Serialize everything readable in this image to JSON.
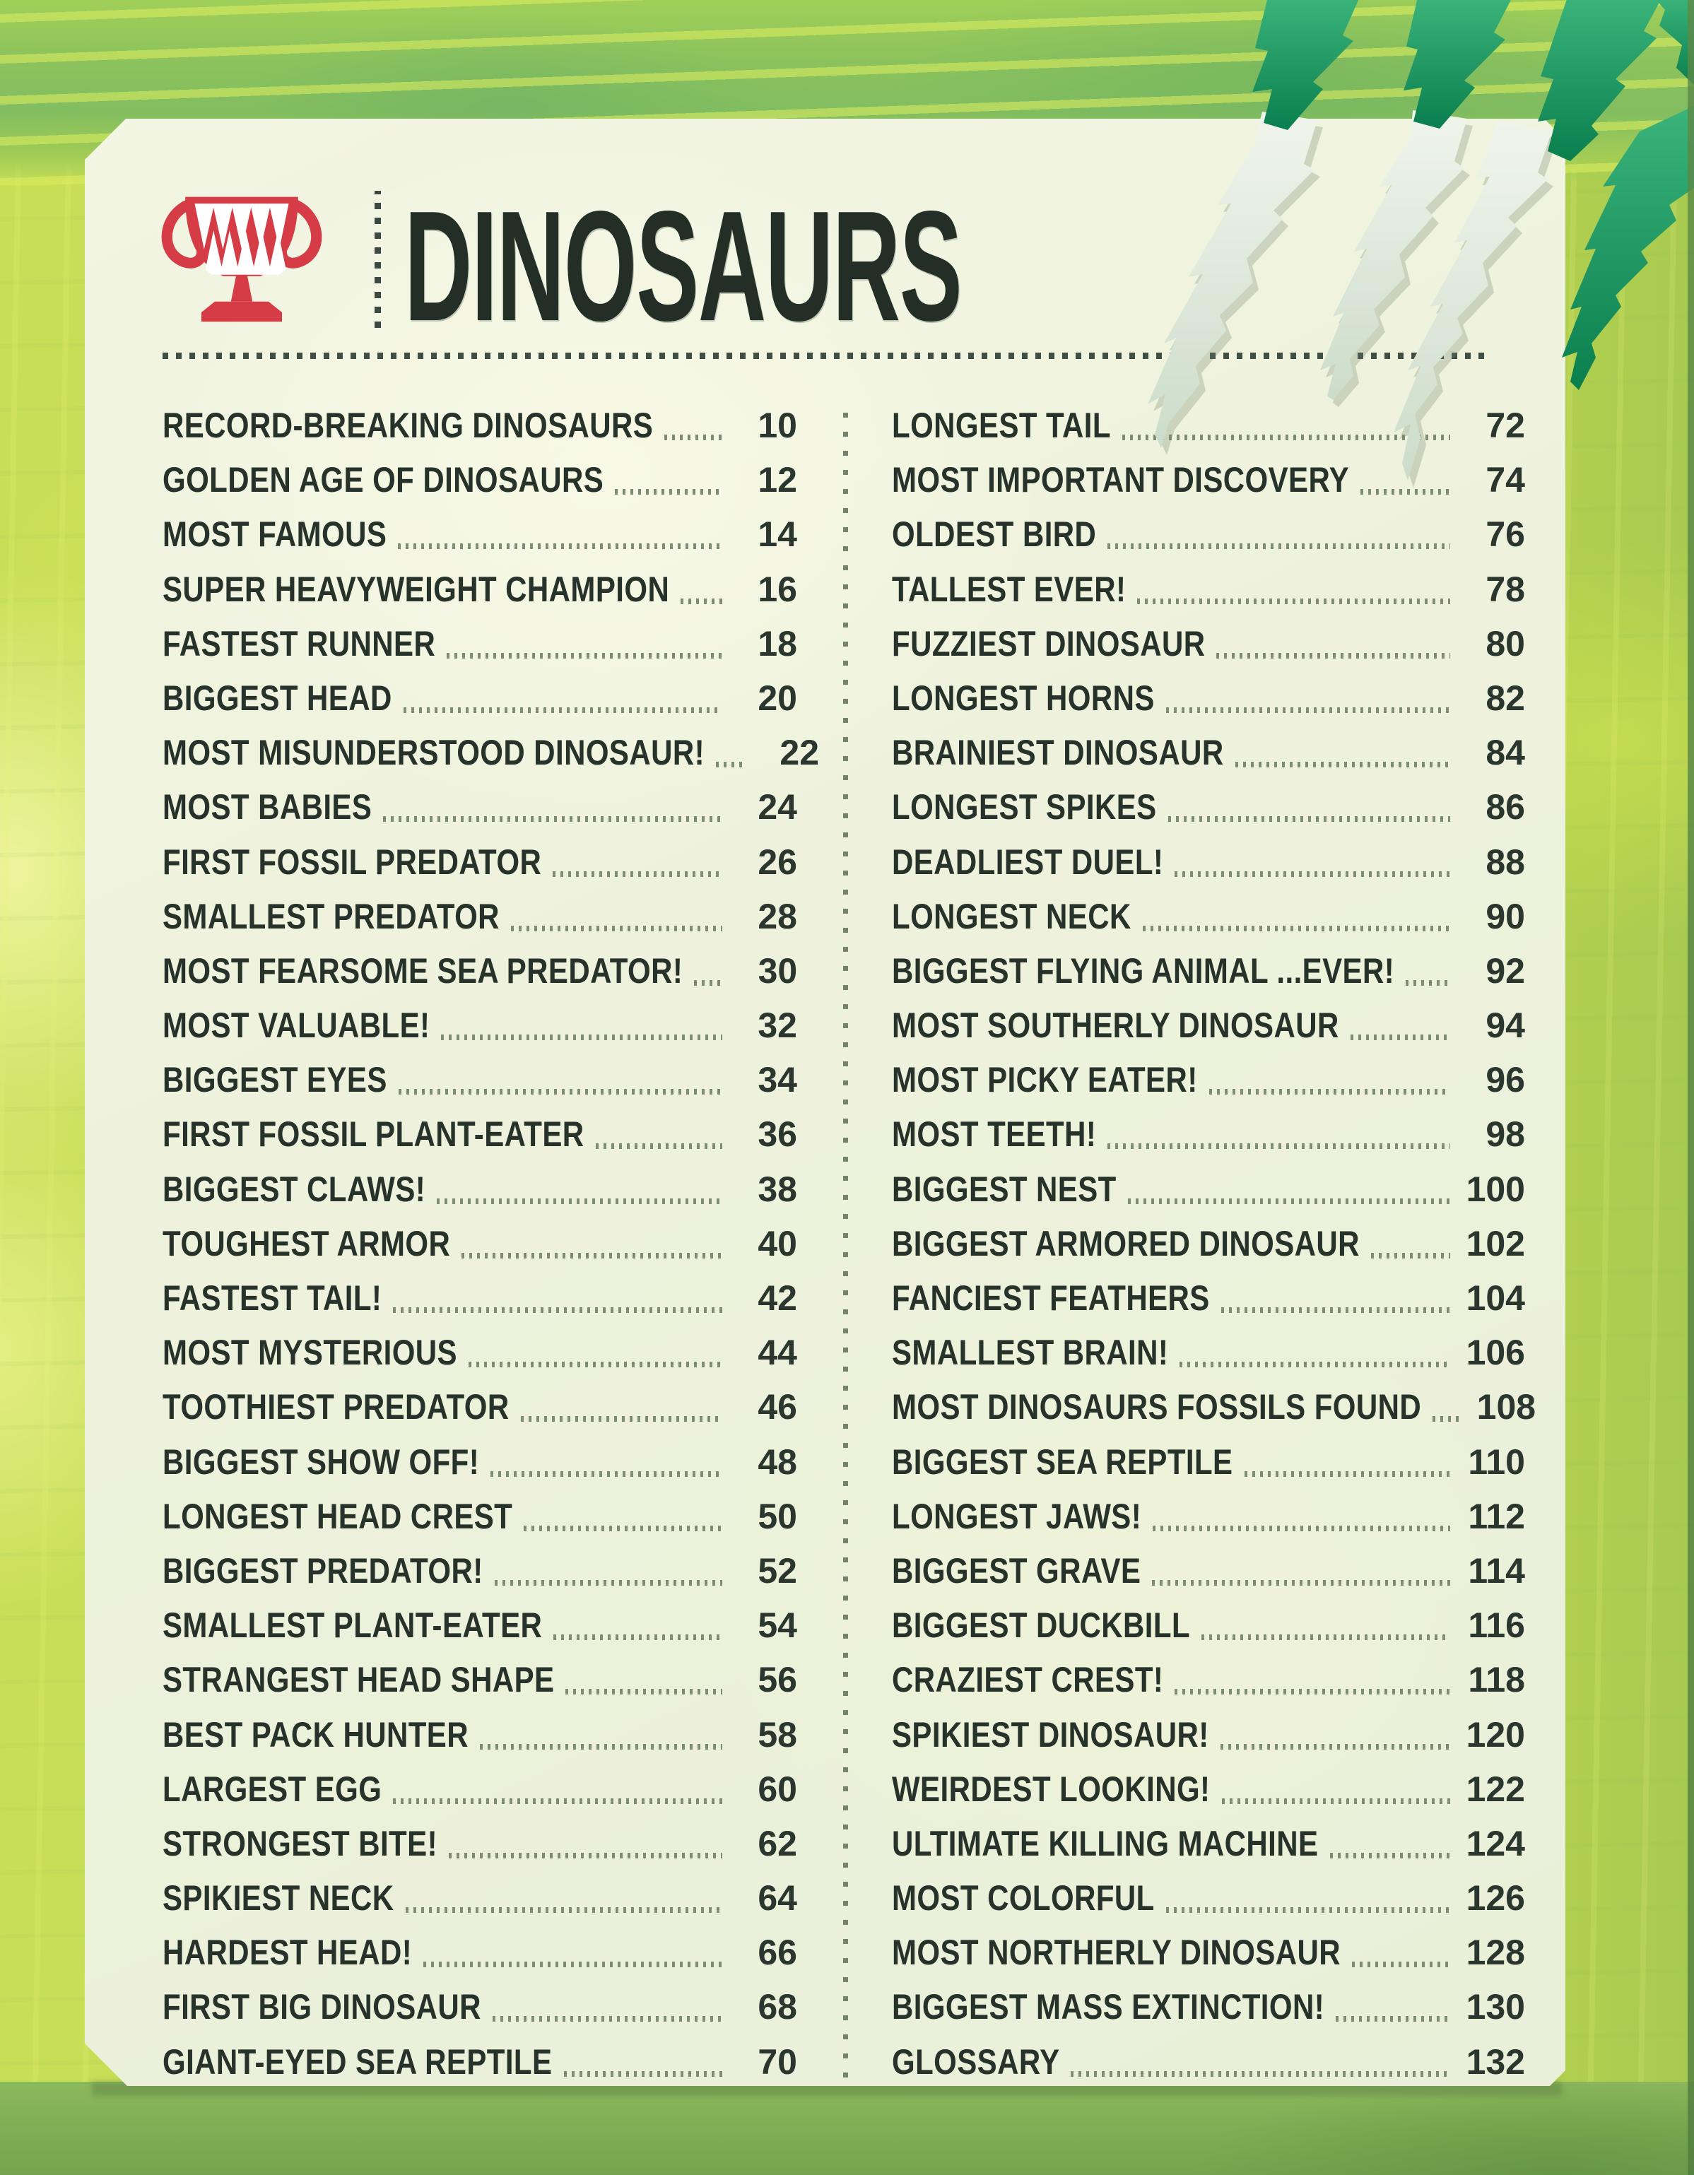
{
  "page": {
    "title": "DINOSAURS",
    "icons": {
      "header_icon": "trophy-with-teeth-icon"
    },
    "colors": {
      "paper": "#eef2dc",
      "ink": "#26322a",
      "leader_dots": "#7e8c72",
      "trophy_red": "#d53c45",
      "claw_green": "#0f8f56",
      "background_green": "#c3dc52"
    }
  },
  "toc": {
    "left_column": [
      {
        "label": "RECORD-BREAKING DINOSAURS",
        "page": "10"
      },
      {
        "label": "GOLDEN AGE OF DINOSAURS",
        "page": "12"
      },
      {
        "label": "MOST FAMOUS",
        "page": "14"
      },
      {
        "label": "SUPER HEAVYWEIGHT CHAMPION",
        "page": "16"
      },
      {
        "label": "FASTEST RUNNER",
        "page": "18"
      },
      {
        "label": "BIGGEST HEAD",
        "page": "20"
      },
      {
        "label": "MOST MISUNDERSTOOD DINOSAUR!",
        "page": "22"
      },
      {
        "label": "MOST BABIES",
        "page": "24"
      },
      {
        "label": "FIRST FOSSIL PREDATOR",
        "page": "26"
      },
      {
        "label": "SMALLEST PREDATOR",
        "page": "28"
      },
      {
        "label": "MOST FEARSOME SEA PREDATOR!",
        "page": "30"
      },
      {
        "label": "MOST VALUABLE!",
        "page": "32"
      },
      {
        "label": "BIGGEST EYES",
        "page": "34"
      },
      {
        "label": "FIRST FOSSIL PLANT-EATER",
        "page": "36"
      },
      {
        "label": "BIGGEST CLAWS!",
        "page": "38"
      },
      {
        "label": "TOUGHEST ARMOR",
        "page": "40"
      },
      {
        "label": "FASTEST TAIL!",
        "page": "42"
      },
      {
        "label": "MOST MYSTERIOUS",
        "page": "44"
      },
      {
        "label": "TOOTHIEST PREDATOR",
        "page": "46"
      },
      {
        "label": "BIGGEST SHOW OFF!",
        "page": "48"
      },
      {
        "label": "LONGEST HEAD CREST",
        "page": "50"
      },
      {
        "label": "BIGGEST PREDATOR!",
        "page": "52"
      },
      {
        "label": "SMALLEST PLANT-EATER",
        "page": "54"
      },
      {
        "label": "STRANGEST HEAD SHAPE",
        "page": "56"
      },
      {
        "label": "BEST PACK HUNTER",
        "page": "58"
      },
      {
        "label": "LARGEST EGG",
        "page": "60"
      },
      {
        "label": "STRONGEST BITE!",
        "page": "62"
      },
      {
        "label": "SPIKIEST NECK",
        "page": "64"
      },
      {
        "label": "HARDEST HEAD!",
        "page": "66"
      },
      {
        "label": "FIRST BIG DINOSAUR",
        "page": "68"
      },
      {
        "label": "GIANT-EYED SEA REPTILE",
        "page": "70"
      }
    ],
    "right_column": [
      {
        "label": "LONGEST TAIL",
        "page": "72"
      },
      {
        "label": "MOST IMPORTANT DISCOVERY",
        "page": "74"
      },
      {
        "label": "OLDEST BIRD",
        "page": "76"
      },
      {
        "label": "TALLEST EVER!",
        "page": "78"
      },
      {
        "label": "FUZZIEST DINOSAUR",
        "page": "80"
      },
      {
        "label": "LONGEST HORNS",
        "page": "82"
      },
      {
        "label": "BRAINIEST DINOSAUR",
        "page": "84"
      },
      {
        "label": "LONGEST SPIKES",
        "page": "86"
      },
      {
        "label": "DEADLIEST DUEL!",
        "page": "88"
      },
      {
        "label": "LONGEST NECK",
        "page": "90"
      },
      {
        "label": "BIGGEST FLYING ANIMAL ...EVER!",
        "page": "92"
      },
      {
        "label": "MOST SOUTHERLY DINOSAUR",
        "page": "94"
      },
      {
        "label": "MOST PICKY EATER!",
        "page": "96"
      },
      {
        "label": "MOST TEETH!",
        "page": "98"
      },
      {
        "label": "BIGGEST NEST",
        "page": "100"
      },
      {
        "label": "BIGGEST ARMORED DINOSAUR",
        "page": "102"
      },
      {
        "label": "FANCIEST FEATHERS",
        "page": "104"
      },
      {
        "label": "SMALLEST BRAIN!",
        "page": "106"
      },
      {
        "label": "MOST DINOSAURS FOSSILS FOUND",
        "page": "108"
      },
      {
        "label": "BIGGEST SEA REPTILE",
        "page": "110"
      },
      {
        "label": "LONGEST JAWS!",
        "page": "112"
      },
      {
        "label": "BIGGEST GRAVE",
        "page": "114"
      },
      {
        "label": "BIGGEST DUCKBILL",
        "page": "116"
      },
      {
        "label": "CRAZIEST CREST!",
        "page": "118"
      },
      {
        "label": "SPIKIEST DINOSAUR!",
        "page": "120"
      },
      {
        "label": "WEIRDEST LOOKING!",
        "page": "122"
      },
      {
        "label": "ULTIMATE KILLING MACHINE",
        "page": "124"
      },
      {
        "label": "MOST COLORFUL",
        "page": "126"
      },
      {
        "label": "MOST NORTHERLY DINOSAUR",
        "page": "128"
      },
      {
        "label": "BIGGEST MASS EXTINCTION!",
        "page": "130"
      },
      {
        "label": "GLOSSARY",
        "page": "132"
      }
    ]
  }
}
